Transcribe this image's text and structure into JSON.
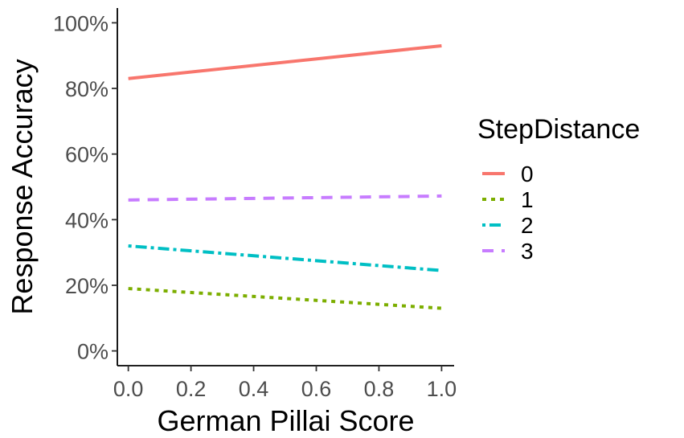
{
  "chart_data": {
    "type": "line",
    "title": "",
    "xlabel": "German Pillai Score",
    "ylabel": "Response Accuracy",
    "xlim": [
      -0.035,
      1.04
    ],
    "ylim": [
      -0.045,
      1.045
    ],
    "x_ticks": [
      0.0,
      0.2,
      0.4,
      0.6,
      0.8,
      1.0
    ],
    "x_tick_labels": [
      "0.0",
      "0.2",
      "0.4",
      "0.6",
      "0.8",
      "1.0"
    ],
    "y_ticks": [
      0,
      0.2,
      0.4,
      0.6,
      0.8,
      1.0
    ],
    "y_tick_labels": [
      "0%",
      "20%",
      "40%",
      "60%",
      "80%",
      "100%"
    ],
    "grid": false,
    "legend": {
      "title": "StepDistance",
      "position": "right"
    },
    "series": [
      {
        "name": "0",
        "color": "#F8766D",
        "dash": "solid",
        "x": [
          0,
          1
        ],
        "y": [
          0.83,
          0.93
        ]
      },
      {
        "name": "1",
        "color": "#7CAE00",
        "dash": "dotted",
        "x": [
          0,
          1
        ],
        "y": [
          0.19,
          0.13
        ]
      },
      {
        "name": "2",
        "color": "#00BFC4",
        "dash": "dotdash",
        "x": [
          0,
          1
        ],
        "y": [
          0.32,
          0.245
        ]
      },
      {
        "name": "3",
        "color": "#C77CFF",
        "dash": "dashed",
        "x": [
          0,
          1
        ],
        "y": [
          0.46,
          0.472
        ]
      }
    ]
  }
}
